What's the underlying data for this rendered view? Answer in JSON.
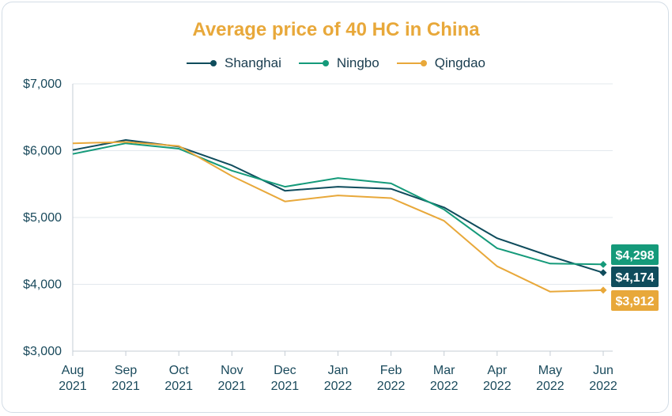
{
  "chart_data": {
    "type": "line",
    "title": "Average price of 40 HC in China",
    "xlabel": "",
    "ylabel": "",
    "categories": [
      [
        "Aug",
        "2021"
      ],
      [
        "Sep",
        "2021"
      ],
      [
        "Oct",
        "2021"
      ],
      [
        "Nov",
        "2021"
      ],
      [
        "Dec",
        "2021"
      ],
      [
        "Jan",
        "2022"
      ],
      [
        "Feb",
        "2022"
      ],
      [
        "Mar",
        "2022"
      ],
      [
        "Apr",
        "2022"
      ],
      [
        "May",
        "2022"
      ],
      [
        "Jun",
        "2022"
      ]
    ],
    "ylim": [
      3000,
      7000
    ],
    "yticks": [
      3000,
      4000,
      5000,
      6000,
      7000
    ],
    "ytick_labels": [
      "$3,000",
      "$4,000",
      "$5,000",
      "$6,000",
      "$7,000"
    ],
    "grid": "horizontal",
    "legend_position": "top-center",
    "series": [
      {
        "name": "Shanghai",
        "color": "#0f4c5c",
        "values": [
          6010,
          6160,
          6060,
          5780,
          5400,
          5460,
          5430,
          5150,
          4690,
          4420,
          4174
        ],
        "end_label": "$4,174"
      },
      {
        "name": "Ningbo",
        "color": "#159a7a",
        "values": [
          5950,
          6110,
          6030,
          5700,
          5460,
          5590,
          5510,
          5120,
          4540,
          4310,
          4298
        ],
        "end_label": "$4,298"
      },
      {
        "name": "Qingdao",
        "color": "#e8a83a",
        "values": [
          6110,
          6130,
          6070,
          5620,
          5240,
          5330,
          5290,
          4950,
          4270,
          3890,
          3912
        ],
        "end_label": "$3,912"
      }
    ]
  }
}
